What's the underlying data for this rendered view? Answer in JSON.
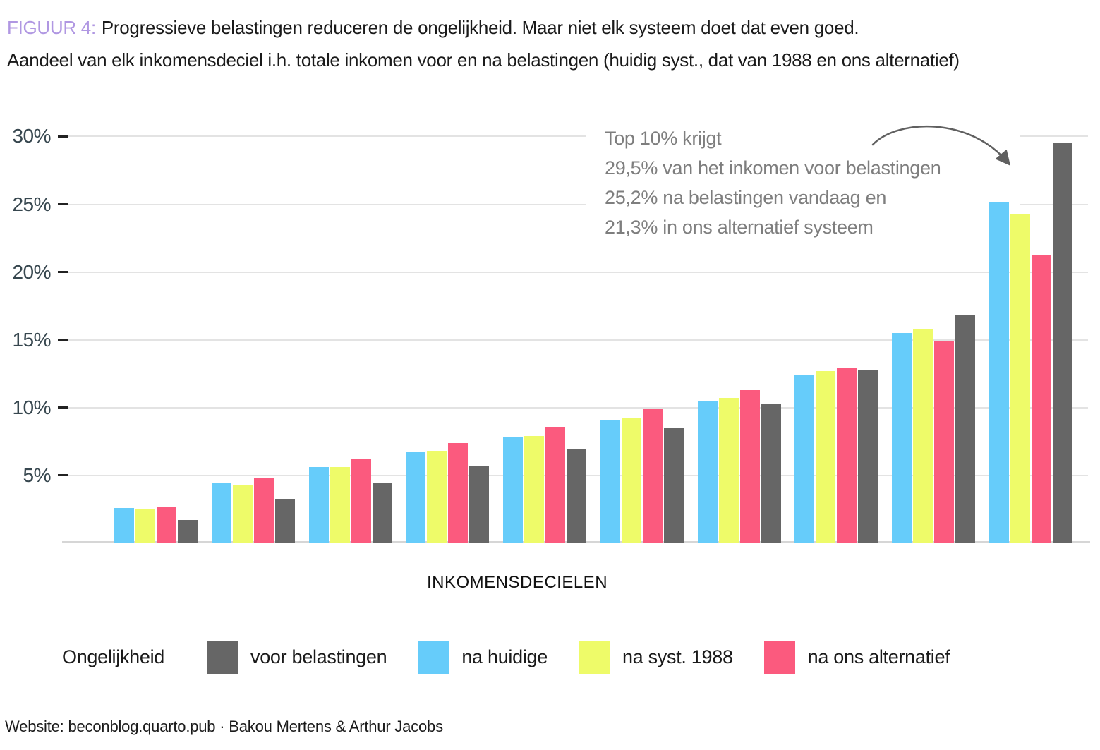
{
  "figure": {
    "label": "FIGUUR 4:",
    "title": "Progressieve belastingen reduceren de ongelijkheid. Maar niet elk systeem doet dat even goed.",
    "subtitle": "Aandeel van elk inkomensdeciel i.h. totale inkomen voor en na belastingen (huidig syst., dat van 1988 en ons alternatief)"
  },
  "annotation": {
    "lines": [
      "Top 10% krijgt",
      "29,5% van het inkomen voor belastingen",
      "25,2% na belastingen vandaag en",
      "21,3% in ons alternatief systeem"
    ]
  },
  "chart_data": {
    "type": "bar",
    "title": "Progressieve belastingen reduceren de ongelijkheid. Maar niet elk systeem doet dat even goed.",
    "xlabel": "INKOMENSDECIELEN",
    "ylabel": "",
    "categories": [
      "1",
      "2",
      "3",
      "4",
      "5",
      "6",
      "7",
      "8",
      "9",
      "10"
    ],
    "x_tick_labels_shown": false,
    "ylim": [
      0,
      31
    ],
    "grid": "horizontal",
    "legend_position": "bottom",
    "y_ticks": [
      {
        "label": "30%",
        "value": 30
      },
      {
        "label": "25%",
        "value": 25
      },
      {
        "label": "20%",
        "value": 20
      },
      {
        "label": "15%",
        "value": 15
      },
      {
        "label": "10%",
        "value": 10
      },
      {
        "label": "5%",
        "value": 5
      }
    ],
    "series": [
      {
        "name": "voor belastingen",
        "color": "#666666",
        "values": [
          1.7,
          3.3,
          4.5,
          5.7,
          6.9,
          8.5,
          10.3,
          12.8,
          16.8,
          29.5
        ]
      },
      {
        "name": "na huidige",
        "color": "#66CCFA",
        "values": [
          2.6,
          4.5,
          5.6,
          6.7,
          7.8,
          9.1,
          10.5,
          12.4,
          15.5,
          25.2
        ]
      },
      {
        "name": "na syst. 1988",
        "color": "#EEFB69",
        "values": [
          2.5,
          4.3,
          5.6,
          6.8,
          7.9,
          9.2,
          10.7,
          12.7,
          15.8,
          24.3
        ]
      },
      {
        "name": "na ons alternatief",
        "color": "#FB5A7E",
        "values": [
          2.7,
          4.8,
          6.2,
          7.4,
          8.6,
          9.9,
          11.3,
          12.9,
          14.9,
          21.3
        ]
      }
    ],
    "bar_order_in_group": [
      "na huidige",
      "na syst. 1988",
      "na ons alternatief",
      "voor belastingen"
    ]
  },
  "legend": {
    "title": "Ongelijkheid",
    "items": [
      {
        "label": "voor belastingen",
        "color": "#666666"
      },
      {
        "label": "na huidige",
        "color": "#66CCFA"
      },
      {
        "label": "na syst. 1988",
        "color": "#EEFB69"
      },
      {
        "label": "na ons alternatief",
        "color": "#FB5A7E"
      }
    ]
  },
  "footer": {
    "text": "Website: beconblog.quarto.pub · Bakou Mertens & Arthur Jacobs"
  },
  "colors": {
    "figure_label": "#B097E2",
    "axis_text": "#37474F",
    "annotation_text": "#7E7E7E",
    "arrow": "#606060",
    "gridline": "#E3E3E3",
    "baseline": "#D6D6D6"
  }
}
